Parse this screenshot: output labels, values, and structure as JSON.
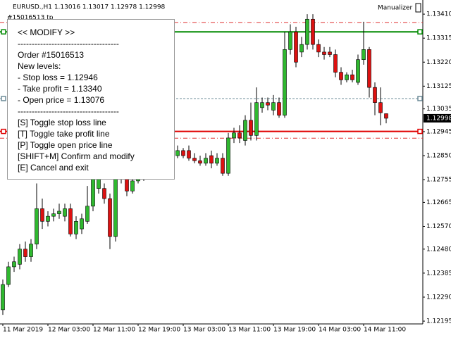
{
  "header": {
    "symbol_line": "EURUSD.,H1  1.13016 1.13017 1.12978 1.12998",
    "order_tag": "#15016513 tp",
    "indicator": "Manualizer"
  },
  "panel": {
    "lines": [
      "<< MODIFY >>",
      "------------------------------------",
      "Order #15016513",
      "New levels:",
      "- Stop loss = 1.12946",
      "- Take profit = 1.13340",
      "- Open price = 1.13076",
      "------------------------------------",
      "[S] Toggle stop loss line",
      "[T] Toggle take profit line",
      "[P] Toggle open price line",
      "[SHIFT+M] Confirm and modify",
      "[E] Cancel and exit"
    ]
  },
  "chart_data": {
    "type": "candlestick",
    "categories": [
      "11 Mar 2019",
      null,
      null,
      null,
      null,
      null,
      null,
      null,
      "12 Mar 03:00",
      null,
      null,
      null,
      null,
      null,
      null,
      null,
      "12 Mar 11:00",
      null,
      null,
      null,
      null,
      null,
      null,
      null,
      "12 Mar 19:00",
      null,
      null,
      null,
      null,
      null,
      null,
      null,
      "13 Mar 03:00",
      null,
      null,
      null,
      null,
      null,
      null,
      null,
      "13 Mar 11:00",
      null,
      null,
      null,
      null,
      null,
      null,
      null,
      "13 Mar 19:00",
      null,
      null,
      null,
      null,
      null,
      null,
      null,
      "14 Mar 03:00",
      null,
      null,
      null,
      null,
      null,
      null,
      null,
      "14 Mar 11:00",
      null,
      null,
      null,
      null
    ],
    "open": [
      1.1224,
      1.1234,
      1.1241,
      1.1242,
      1.1248,
      1.1245,
      1.125,
      1.1264,
      1.1259,
      1.1261,
      1.1262,
      1.1261,
      1.1264,
      1.1254,
      1.1256,
      1.1259,
      1.1265,
      1.1272,
      1.1272,
      1.1268,
      1.1253,
      1.1276,
      1.1276,
      1.1271,
      1.1275,
      1.1277,
      1.128,
      1.1283,
      1.1285,
      1.1284,
      1.1288,
      1.1285,
      1.1287,
      1.1287,
      1.1284,
      1.1283,
      1.1282,
      1.1285,
      1.1282,
      1.1284,
      1.1278,
      1.1292,
      1.1294,
      1.1291,
      1.1299,
      1.1293,
      1.1304,
      1.1306,
      1.1303,
      1.1306,
      1.1301,
      1.1327,
      1.1334,
      1.1326,
      1.1329,
      1.1339,
      1.1329,
      1.1326,
      1.1326,
      1.1325,
      1.1318,
      1.1315,
      1.1317,
      1.1314,
      1.1323,
      1.1327,
      1.1312,
      1.1306,
      1.13016
    ],
    "high": [
      1.1236,
      1.1243,
      1.1245,
      1.125,
      1.1251,
      1.1252,
      1.1274,
      1.1268,
      1.1263,
      1.1264,
      1.1266,
      1.1266,
      1.1266,
      1.1261,
      1.1262,
      1.1273,
      1.1284,
      1.1283,
      1.1274,
      1.127,
      1.1286,
      1.1285,
      1.1278,
      1.1278,
      1.1279,
      1.1283,
      1.1286,
      1.1288,
      1.1288,
      1.1289,
      1.129,
      1.1289,
      1.1288,
      1.1289,
      1.1286,
      1.1285,
      1.1286,
      1.1287,
      1.1286,
      1.1286,
      1.1294,
      1.1296,
      1.1297,
      1.1301,
      1.1306,
      1.1312,
      1.1308,
      1.1308,
      1.1309,
      1.1308,
      1.1334,
      1.1337,
      1.1336,
      1.1332,
      1.1341,
      1.1341,
      1.1331,
      1.1328,
      1.1328,
      1.1327,
      1.132,
      1.1318,
      1.1319,
      1.1325,
      1.1338,
      1.1328,
      1.1314,
      1.1312,
      1.13017
    ],
    "low": [
      1.1222,
      1.1233,
      1.1239,
      1.124,
      1.1243,
      1.1243,
      1.1248,
      1.1256,
      1.1257,
      1.1259,
      1.126,
      1.1259,
      1.1253,
      1.1252,
      1.1254,
      1.1258,
      1.1263,
      1.127,
      1.1266,
      1.1248,
      1.1251,
      1.1274,
      1.1269,
      1.127,
      1.1274,
      1.1275,
      1.1278,
      1.1281,
      1.1282,
      1.1282,
      1.1284,
      1.1284,
      1.1284,
      1.1283,
      1.1282,
      1.1281,
      1.1281,
      1.128,
      1.1281,
      1.1277,
      1.1277,
      1.129,
      1.129,
      1.1289,
      1.1291,
      1.1291,
      1.1302,
      1.1303,
      1.1301,
      1.13,
      1.13,
      1.1325,
      1.132,
      1.1324,
      1.1327,
      1.1327,
      1.1324,
      1.1323,
      1.1324,
      1.1316,
      1.1313,
      1.1314,
      1.1314,
      1.1313,
      1.1321,
      1.1308,
      1.1301,
      1.1297,
      1.12978
    ],
    "close": [
      1.1234,
      1.1241,
      1.1243,
      1.1248,
      1.1245,
      1.125,
      1.1264,
      1.1259,
      1.1261,
      1.1262,
      1.1263,
      1.1264,
      1.1254,
      1.1259,
      1.126,
      1.1265,
      1.1281,
      1.128,
      1.1268,
      1.1253,
      1.1281,
      1.1282,
      1.1271,
      1.1275,
      1.1276,
      1.128,
      1.1283,
      1.1285,
      1.1284,
      1.1286,
      1.1285,
      1.1287,
      1.1285,
      1.1284,
      1.1283,
      1.1282,
      1.1284,
      1.1282,
      1.1284,
      1.1278,
      1.1292,
      1.1294,
      1.1292,
      1.1299,
      1.1293,
      1.1306,
      1.1306,
      1.1305,
      1.1306,
      1.1301,
      1.1327,
      1.1334,
      1.1322,
      1.1329,
      1.1339,
      1.1329,
      1.1326,
      1.1325,
      1.1325,
      1.1318,
      1.1315,
      1.1317,
      1.1315,
      1.1323,
      1.1327,
      1.1312,
      1.1306,
      1.1302,
      1.12998
    ],
    "up_color": "#2fb82f",
    "down_color": "#dd1111",
    "ylim": [
      1.12184,
      1.13466
    ],
    "yticks": [
      {
        "value": 1.1341,
        "label": "1.13410"
      },
      {
        "value": 1.13315,
        "label": "1.13315"
      },
      {
        "value": 1.1322,
        "label": "1.13220"
      },
      {
        "value": 1.13125,
        "label": "1.13125"
      },
      {
        "value": 1.13035,
        "label": "1.13035"
      },
      {
        "value": 1.12945,
        "label": "1.12945"
      },
      {
        "value": 1.1285,
        "label": "1.12850"
      },
      {
        "value": 1.12755,
        "label": "1.12755"
      },
      {
        "value": 1.12665,
        "label": "1.12665"
      },
      {
        "value": 1.1257,
        "label": "1.12570"
      },
      {
        "value": 1.1248,
        "label": "1.12480"
      },
      {
        "value": 1.12385,
        "label": "1.12385"
      },
      {
        "value": 1.1229,
        "label": "1.12290"
      },
      {
        "value": 1.12195,
        "label": "1.12195"
      }
    ],
    "current_price": {
      "value": 1.12998,
      "label": "1.12998"
    },
    "levels": [
      {
        "value": 1.1334,
        "color": "#008a00",
        "style": "solid"
      },
      {
        "value": 1.12946,
        "color": "#e00000",
        "style": "solid"
      },
      {
        "value": 1.13076,
        "color": "#6e8c99",
        "style": "dashed"
      },
      {
        "value": 1.13377,
        "color": "#e03030",
        "style": "dashdot"
      },
      {
        "value": 1.12919,
        "color": "#e03030",
        "style": "dashdot"
      }
    ]
  }
}
